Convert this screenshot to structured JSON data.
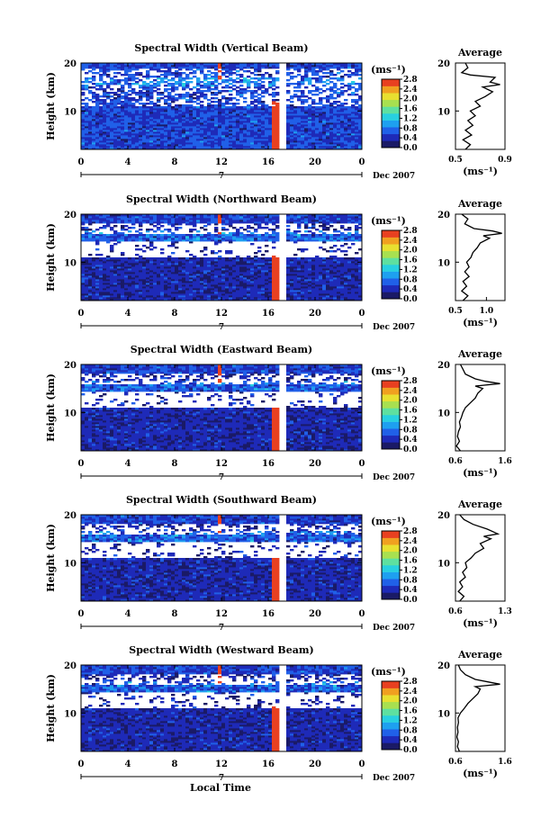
{
  "figure": {
    "xlabel_bottom": "Local Time",
    "date_label": "Dec 2007",
    "day_label": "7"
  },
  "chart_data": [
    {
      "type": "heatmap",
      "title": "Spectral Width (Vertical Beam)",
      "ylabel": "Height (km)",
      "xlim": [
        0,
        24
      ],
      "ylim": [
        2,
        20
      ],
      "xticks": [
        "0",
        "4",
        "8",
        "12",
        "16",
        "20",
        "0"
      ],
      "yticks": [
        "10",
        "20"
      ],
      "colorbar": {
        "unit": "(ms⁻¹)",
        "ticks": [
          "0.0",
          "0.4",
          "0.8",
          "1.2",
          "1.6",
          "2.0",
          "2.4",
          "2.8"
        ],
        "range": [
          0,
          2.8
        ]
      },
      "average": {
        "title": "Average",
        "xlabel": "(ms⁻¹)",
        "xticks": [
          "0.5",
          "0.9"
        ],
        "xlim": [
          0.5,
          0.9
        ],
        "profile": [
          [
            2,
            0.58
          ],
          [
            3,
            0.62
          ],
          [
            4,
            0.56
          ],
          [
            5,
            0.63
          ],
          [
            6,
            0.58
          ],
          [
            7,
            0.64
          ],
          [
            8,
            0.6
          ],
          [
            9,
            0.66
          ],
          [
            10,
            0.62
          ],
          [
            11,
            0.7
          ],
          [
            12,
            0.66
          ],
          [
            13,
            0.74
          ],
          [
            14,
            0.8
          ],
          [
            15,
            0.72
          ],
          [
            15.5,
            0.86
          ],
          [
            16,
            0.78
          ],
          [
            17,
            0.82
          ],
          [
            17.5,
            0.62
          ],
          [
            18,
            0.55
          ],
          [
            19,
            0.6
          ],
          [
            20,
            0.58
          ]
        ]
      }
    },
    {
      "type": "heatmap",
      "title": "Spectral Width (Northward Beam)",
      "ylabel": "Height (km)",
      "xlim": [
        0,
        24
      ],
      "ylim": [
        2,
        20
      ],
      "xticks": [
        "0",
        "4",
        "8",
        "12",
        "16",
        "20",
        "0"
      ],
      "yticks": [
        "10",
        "20"
      ],
      "colorbar": {
        "unit": "(ms⁻¹)",
        "ticks": [
          "0.0",
          "0.4",
          "0.8",
          "1.2",
          "1.6",
          "2.0",
          "2.4",
          "2.8"
        ],
        "range": [
          0,
          2.8
        ]
      },
      "average": {
        "title": "Average",
        "xlabel": "(ms⁻¹)",
        "xticks": [
          "0.5",
          "1.0"
        ],
        "xlim": [
          0.5,
          1.3
        ],
        "profile": [
          [
            2,
            0.62
          ],
          [
            3,
            0.7
          ],
          [
            4,
            0.6
          ],
          [
            5,
            0.68
          ],
          [
            6,
            0.62
          ],
          [
            7,
            0.72
          ],
          [
            8,
            0.65
          ],
          [
            9,
            0.72
          ],
          [
            10,
            0.68
          ],
          [
            11,
            0.75
          ],
          [
            12,
            0.78
          ],
          [
            13,
            0.85
          ],
          [
            14,
            0.9
          ],
          [
            15,
            1.05
          ],
          [
            15.5,
            0.95
          ],
          [
            16,
            1.25
          ],
          [
            16.5,
            1.1
          ],
          [
            17,
            0.8
          ],
          [
            18,
            0.65
          ],
          [
            19,
            0.7
          ],
          [
            20,
            0.6
          ]
        ]
      }
    },
    {
      "type": "heatmap",
      "title": "Spectral Width (Eastward Beam)",
      "ylabel": "Height (km)",
      "xlim": [
        0,
        24
      ],
      "ylim": [
        2,
        20
      ],
      "xticks": [
        "0",
        "4",
        "8",
        "12",
        "16",
        "20",
        "0"
      ],
      "yticks": [
        "10",
        "20"
      ],
      "colorbar": {
        "unit": "(ms⁻¹)",
        "ticks": [
          "0.0",
          "0.4",
          "0.8",
          "1.2",
          "1.6",
          "2.0",
          "2.4",
          "2.8"
        ],
        "range": [
          0,
          2.8
        ]
      },
      "average": {
        "title": "Average",
        "xlabel": "(ms⁻¹)",
        "xticks": [
          "0.6",
          "1.6"
        ],
        "xlim": [
          0.6,
          1.6
        ],
        "profile": [
          [
            2,
            0.7
          ],
          [
            3,
            0.62
          ],
          [
            4,
            0.68
          ],
          [
            5,
            0.64
          ],
          [
            6,
            0.66
          ],
          [
            7,
            0.7
          ],
          [
            8,
            0.68
          ],
          [
            9,
            0.72
          ],
          [
            10,
            0.75
          ],
          [
            11,
            0.8
          ],
          [
            12,
            0.9
          ],
          [
            13,
            1.0
          ],
          [
            14,
            1.05
          ],
          [
            15,
            1.15
          ],
          [
            15.5,
            1.0
          ],
          [
            16,
            1.5
          ],
          [
            16.5,
            1.2
          ],
          [
            17,
            1.0
          ],
          [
            18,
            0.8
          ],
          [
            19,
            0.75
          ],
          [
            20,
            0.7
          ]
        ]
      }
    },
    {
      "type": "heatmap",
      "title": "Spectral Width (Southward Beam)",
      "ylabel": "Height (km)",
      "xlim": [
        0,
        24
      ],
      "ylim": [
        2,
        20
      ],
      "xticks": [
        "0",
        "4",
        "8",
        "12",
        "16",
        "20",
        "0"
      ],
      "yticks": [
        "10",
        "20"
      ],
      "colorbar": {
        "unit": "(ms⁻¹)",
        "ticks": [
          "0.0",
          "0.4",
          "0.8",
          "1.2",
          "1.6",
          "2.0",
          "2.4",
          "2.8"
        ],
        "range": [
          0,
          2.8
        ]
      },
      "average": {
        "title": "Average",
        "xlabel": "(ms⁻¹)",
        "xticks": [
          "0.6",
          "1.3"
        ],
        "xlim": [
          0.6,
          1.3
        ],
        "profile": [
          [
            2,
            0.66
          ],
          [
            3,
            0.72
          ],
          [
            4,
            0.64
          ],
          [
            5,
            0.7
          ],
          [
            6,
            0.66
          ],
          [
            7,
            0.74
          ],
          [
            8,
            0.7
          ],
          [
            9,
            0.76
          ],
          [
            10,
            0.74
          ],
          [
            11,
            0.82
          ],
          [
            12,
            0.88
          ],
          [
            13,
            1.0
          ],
          [
            14,
            0.95
          ],
          [
            15,
            1.1
          ],
          [
            15.5,
            1.0
          ],
          [
            16,
            1.2
          ],
          [
            17,
            1.05
          ],
          [
            18,
            0.85
          ],
          [
            19,
            0.72
          ],
          [
            20,
            0.66
          ]
        ]
      }
    },
    {
      "type": "heatmap",
      "title": "Spectral Width (Westward Beam)",
      "ylabel": "Height (km)",
      "xlim": [
        0,
        24
      ],
      "ylim": [
        2,
        20
      ],
      "xticks": [
        "0",
        "4",
        "8",
        "12",
        "16",
        "20",
        "0"
      ],
      "yticks": [
        "10",
        "20"
      ],
      "colorbar": {
        "unit": "(ms⁻¹)",
        "ticks": [
          "0.0",
          "0.4",
          "0.8",
          "1.2",
          "1.6",
          "2.0",
          "2.4",
          "2.8"
        ],
        "range": [
          0,
          2.8
        ]
      },
      "average": {
        "title": "Average",
        "xlabel": "(ms⁻¹)",
        "xticks": [
          "0.6",
          "1.6"
        ],
        "xlim": [
          0.6,
          1.6
        ],
        "profile": [
          [
            2,
            0.68
          ],
          [
            3,
            0.64
          ],
          [
            4,
            0.66
          ],
          [
            5,
            0.63
          ],
          [
            6,
            0.65
          ],
          [
            7,
            0.64
          ],
          [
            8,
            0.66
          ],
          [
            9,
            0.65
          ],
          [
            10,
            0.7
          ],
          [
            11,
            0.78
          ],
          [
            12,
            0.85
          ],
          [
            13,
            0.95
          ],
          [
            14,
            1.05
          ],
          [
            15,
            1.1
          ],
          [
            15.5,
            1.0
          ],
          [
            16,
            1.5
          ],
          [
            16.5,
            1.25
          ],
          [
            17,
            1.0
          ],
          [
            18,
            0.8
          ],
          [
            19,
            0.7
          ],
          [
            20,
            0.66
          ]
        ]
      }
    }
  ]
}
